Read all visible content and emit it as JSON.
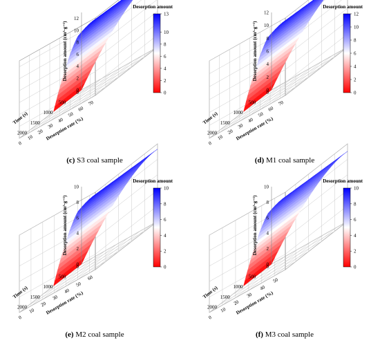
{
  "colors": {
    "low": "#ff0000",
    "mid": "#ffffff",
    "high": "#0000ff"
  },
  "chart_data": [
    {
      "type": "surface3d",
      "caption_letter": "(c)",
      "caption_text": "S3 coal sample",
      "colorbar_title": "Desorption amount",
      "zlabel": "Desorption amount (cm³·g⁻¹)",
      "xlabel": "Time (s)",
      "ylabel": "Desorption rate (%)",
      "x_ticks": [
        0,
        500,
        1000,
        1500,
        2000
      ],
      "y_ticks": [
        0,
        10,
        20,
        30,
        40,
        50,
        60,
        70
      ],
      "z_ticks": [
        0,
        2,
        4,
        6,
        8,
        10,
        12
      ],
      "colorbar_ticks": [
        0,
        2,
        4,
        6,
        8,
        10,
        13
      ],
      "xlim": [
        0,
        2400
      ],
      "ylim": [
        0,
        75
      ],
      "zlim": [
        0,
        13
      ],
      "colorbar_range": [
        0,
        13
      ],
      "surface_max": 12.8
    },
    {
      "type": "surface3d",
      "caption_letter": "(d)",
      "caption_text": "M1 coal sample",
      "colorbar_title": "Desorption amount",
      "zlabel": "Desorption amount (cm³·g⁻¹)",
      "xlabel": "Time (s)",
      "ylabel": "Desorption rate (%)",
      "x_ticks": [
        0,
        500,
        1000,
        1500,
        2000
      ],
      "y_ticks": [
        0,
        10,
        20,
        30,
        40,
        50,
        60,
        70
      ],
      "z_ticks": [
        0,
        2,
        4,
        6,
        8,
        10,
        12
      ],
      "colorbar_ticks": [
        0,
        2,
        4,
        6,
        8,
        10,
        12
      ],
      "xlim": [
        0,
        2400
      ],
      "ylim": [
        0,
        75
      ],
      "zlim": [
        0,
        12
      ],
      "colorbar_range": [
        0,
        12
      ],
      "surface_max": 11.6
    },
    {
      "type": "surface3d",
      "caption_letter": "(e)",
      "caption_text": "M2 coal sample",
      "colorbar_title": "Desorption amount",
      "zlabel": "Desorption amount (cm³·g⁻¹)",
      "xlabel": "Time (s)",
      "ylabel": "Desorption rate (%)",
      "x_ticks": [
        0,
        500,
        1000,
        1500,
        2000
      ],
      "y_ticks": [
        0,
        10,
        20,
        30,
        40,
        50,
        60
      ],
      "z_ticks": [
        0,
        2,
        4,
        6,
        8,
        10
      ],
      "colorbar_ticks": [
        0,
        2,
        4,
        6,
        8,
        10
      ],
      "xlim": [
        0,
        2400
      ],
      "ylim": [
        0,
        65
      ],
      "zlim": [
        0,
        10
      ],
      "colorbar_range": [
        0,
        10
      ],
      "surface_max": 9.7
    },
    {
      "type": "surface3d",
      "caption_letter": "(f)",
      "caption_text": "M3 coal sample",
      "colorbar_title": "Desorption amount",
      "zlabel": "Desorption amount (cm³·g⁻¹)",
      "xlabel": "Time (s)",
      "ylabel": "Desorption rate (%)",
      "x_ticks": [
        0,
        500,
        1000,
        1500,
        2000
      ],
      "y_ticks": [
        0,
        10,
        20,
        30,
        40,
        50
      ],
      "z_ticks": [
        0,
        2,
        4,
        6,
        8,
        10
      ],
      "colorbar_ticks": [
        0,
        2,
        4,
        6,
        8,
        10
      ],
      "xlim": [
        0,
        2400
      ],
      "ylim": [
        0,
        58
      ],
      "zlim": [
        0,
        10
      ],
      "colorbar_range": [
        0,
        10
      ],
      "surface_max": 9.4
    }
  ]
}
